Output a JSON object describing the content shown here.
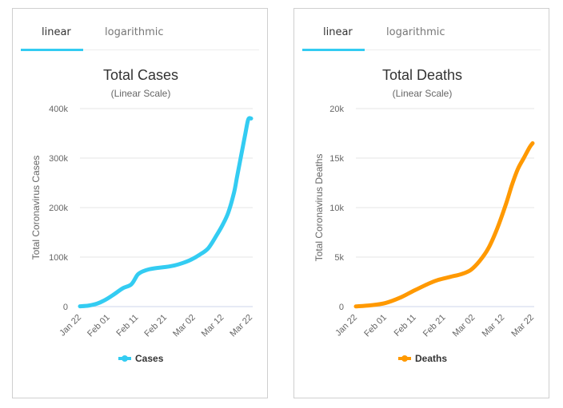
{
  "panels": [
    {
      "tabs": [
        {
          "label": "linear",
          "active": true
        },
        {
          "label": "logarithmic",
          "active": false
        }
      ]
    },
    {
      "tabs": [
        {
          "label": "linear",
          "active": true
        },
        {
          "label": "logarithmic",
          "active": false
        }
      ]
    }
  ],
  "colors": {
    "tab_accent": "#33ccf2",
    "cases": "#33ccf2",
    "deaths": "#ff9900",
    "grid": "#e6e6e6",
    "axis": "#ccd6eb"
  },
  "chart_data": [
    {
      "type": "line",
      "title": "Total Cases",
      "subtitle": "(Linear Scale)",
      "xlabel": "",
      "ylabel": "Total Coronavirus Cases",
      "ylim": [
        0,
        400000
      ],
      "yticks": [
        0,
        100000,
        200000,
        300000,
        400000
      ],
      "ytick_labels": [
        "0",
        "100k",
        "200k",
        "300k",
        "400k"
      ],
      "xtick_labels": [
        "Jan 22",
        "Feb 01",
        "Feb 11",
        "Feb 21",
        "Mar 02",
        "Mar 12",
        "Mar 22"
      ],
      "xlim_days": [
        0,
        60
      ],
      "grid": true,
      "legend": {
        "position": "bottom-center",
        "entries": [
          "Cases"
        ]
      },
      "series": [
        {
          "name": "Cases",
          "color": "#33ccf2",
          "x_days": [
            0,
            3,
            6,
            9,
            12,
            15,
            18,
            20,
            21,
            22,
            24,
            27,
            30,
            33,
            36,
            39,
            42,
            45,
            48,
            50,
            52,
            54,
            55,
            56,
            57,
            58,
            59,
            60
          ],
          "values": [
            600,
            2000,
            6000,
            14000,
            25000,
            37000,
            45000,
            63000,
            68000,
            71000,
            75000,
            78000,
            80000,
            83000,
            88000,
            95000,
            105000,
            118000,
            145000,
            165000,
            190000,
            230000,
            260000,
            290000,
            320000,
            350000,
            378000,
            380000
          ]
        }
      ]
    },
    {
      "type": "line",
      "title": "Total Deaths",
      "subtitle": "(Linear Scale)",
      "xlabel": "",
      "ylabel": "Total Coronavirus Deaths",
      "ylim": [
        0,
        20000
      ],
      "yticks": [
        0,
        5000,
        10000,
        15000,
        20000
      ],
      "ytick_labels": [
        "0",
        "5k",
        "10k",
        "15k",
        "20k"
      ],
      "xtick_labels": [
        "Jan 22",
        "Feb 01",
        "Feb 11",
        "Feb 21",
        "Mar 02",
        "Mar 12",
        "Mar 22"
      ],
      "xlim_days": [
        0,
        60
      ],
      "grid": true,
      "legend": {
        "position": "bottom-center",
        "entries": [
          "Deaths"
        ]
      },
      "series": [
        {
          "name": "Deaths",
          "color": "#ff9900",
          "x_days": [
            0,
            5,
            10,
            15,
            20,
            25,
            28,
            32,
            36,
            39,
            42,
            45,
            48,
            51,
            53,
            55,
            57,
            59,
            60
          ],
          "values": [
            17,
            130,
            360,
            900,
            1650,
            2360,
            2700,
            3000,
            3300,
            3700,
            4600,
            5900,
            7900,
            10400,
            12300,
            13900,
            15000,
            16100,
            16500
          ]
        }
      ]
    }
  ]
}
